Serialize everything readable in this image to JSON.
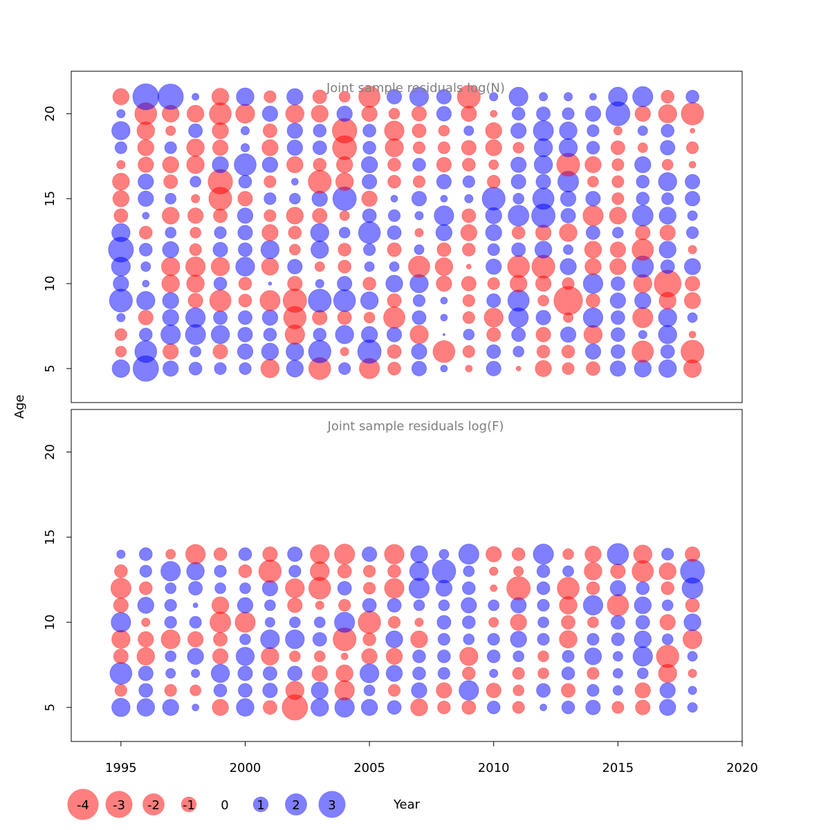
{
  "chart_data": [
    {
      "type": "scatter",
      "subtype": "bubble",
      "title": "Joint sample residuals log(N)",
      "ylabel": "Age",
      "xlabel": "Year",
      "xlim": [
        1993,
        2020
      ],
      "ylim": [
        3,
        22.5
      ],
      "x_ticks": [
        1995,
        2000,
        2005,
        2010,
        2015,
        2020
      ],
      "y_ticks": [
        5,
        10,
        15,
        20
      ],
      "years": [
        1995,
        1996,
        1997,
        1998,
        1999,
        2000,
        2001,
        2002,
        2003,
        2004,
        2005,
        2006,
        2007,
        2008,
        2009,
        2010,
        2011,
        2012,
        2013,
        2014,
        2015,
        2016,
        2017,
        2018
      ],
      "ages": [
        5,
        6,
        7,
        8,
        9,
        10,
        11,
        12,
        13,
        14,
        15,
        16,
        17,
        18,
        19,
        20,
        21
      ],
      "residuals": [
        [
          1.3,
          2.7,
          1.0,
          0.7,
          0.6,
          0.6,
          -1.4,
          1.2,
          -2.0,
          0.6,
          -1.7,
          -0.7,
          0.9,
          0.2,
          -0.2,
          0.9,
          -0.1,
          -1.1,
          -0.6,
          -0.8,
          1.0,
          1.2,
          1.3,
          -1.3
        ],
        [
          -0.5,
          2.0,
          -1.0,
          0.5,
          -0.9,
          1.0,
          1.2,
          1.3,
          2.1,
          -0.3,
          2.3,
          -0.8,
          1.0,
          -2.0,
          -0.6,
          0.8,
          0.5,
          -0.7,
          -0.7,
          1.0,
          0.8,
          -1.9,
          0.8,
          -2.2
        ],
        [
          -0.6,
          0.7,
          1.6,
          1.7,
          1.4,
          0.9,
          0.7,
          -1.6,
          0.7,
          1.4,
          1.1,
          0.9,
          -1.4,
          0.02,
          0.5,
          -0.8,
          0.8,
          -0.9,
          1.0,
          -1.4,
          0.8,
          0.3,
          1.4,
          -0.2
        ],
        [
          0.3,
          -0.9,
          1.1,
          1.6,
          0.8,
          0.8,
          1.0,
          -2.1,
          -0.9,
          -0.8,
          -0.5,
          -1.9,
          0.8,
          0.2,
          -0.6,
          -1.5,
          1.6,
          0.9,
          -0.4,
          1.6,
          0.8,
          -1.7,
          1.4,
          0.4
        ],
        [
          2.2,
          1.4,
          1.1,
          -0.9,
          -1.9,
          -0.7,
          -1.7,
          -2.3,
          2.2,
          2.0,
          1.3,
          -0.8,
          0.6,
          0.2,
          -0.6,
          0.8,
          1.9,
          -0.5,
          -3.4,
          -0.8,
          1.0,
          1.1,
          -1.2,
          -1.1
        ],
        [
          1.0,
          0.2,
          -1.3,
          -1.3,
          0.7,
          -0.7,
          0.05,
          -0.9,
          0.3,
          0.9,
          -0.7,
          1.2,
          1.4,
          -1.0,
          -0.9,
          -0.6,
          -1.2,
          -1.0,
          -0.6,
          1.6,
          0.8,
          -1.4,
          -3.0,
          -0.9
        ],
        [
          1.5,
          0.4,
          -1.4,
          -1.6,
          -1.4,
          1.5,
          -1.2,
          0.9,
          -0.4,
          -0.7,
          0.4,
          0.4,
          -1.9,
          -1.3,
          -0.1,
          1.0,
          -2.0,
          -2.2,
          1.1,
          -1.1,
          -1.1,
          1.9,
          0.8,
          1.1
        ],
        [
          2.6,
          0.7,
          1.1,
          -0.6,
          0.9,
          0.8,
          1.4,
          -0.5,
          1.3,
          -0.7,
          0.6,
          -0.8,
          0.4,
          -0.8,
          -0.7,
          0.6,
          0.8,
          1.2,
          0.4,
          -1.2,
          -1.0,
          -1.9,
          1.2,
          -0.3
        ],
        [
          1.4,
          -0.7,
          0.5,
          -0.5,
          0.6,
          0.9,
          -1.1,
          -0.7,
          1.4,
          0.5,
          2.0,
          0.8,
          -0.3,
          1.1,
          -1.1,
          1.1,
          -0.7,
          -1.0,
          -1.3,
          0.8,
          0.5,
          -0.9,
          -1.0,
          0.6
        ],
        [
          -0.8,
          0.2,
          -1.2,
          -1.0,
          -0.8,
          1.0,
          -0.6,
          -1.2,
          -0.9,
          -0.4,
          0.8,
          0.6,
          0.3,
          1.6,
          -0.8,
          1.1,
          1.8,
          2.3,
          0.9,
          -1.7,
          -1.2,
          1.8,
          1.2,
          0.4
        ],
        [
          -1.1,
          1.0,
          0.5,
          -0.3,
          -2.2,
          -0.9,
          0.6,
          0.5,
          1.0,
          2.3,
          -1.0,
          0.2,
          0.9,
          0.2,
          0.3,
          2.2,
          0.5,
          1.9,
          1.0,
          0.9,
          -0.6,
          0.7,
          0.6,
          0.9
        ],
        [
          -1.2,
          1.0,
          -0.8,
          0.5,
          -2.5,
          0.7,
          -0.6,
          0.2,
          -2.2,
          -1.3,
          0.9,
          -0.7,
          -0.6,
          0.9,
          0.6,
          -0.7,
          0.9,
          0.9,
          1.8,
          -0.5,
          -0.6,
          0.7,
          1.4,
          0.9
        ],
        [
          -0.3,
          -1.0,
          -1.1,
          -1.3,
          1.1,
          2.0,
          1.0,
          -1.1,
          -0.7,
          -1.1,
          1.1,
          -0.7,
          0.7,
          -0.9,
          -0.7,
          -0.4,
          1.0,
          1.4,
          -2.2,
          -1.1,
          -0.6,
          1.1,
          -0.5,
          -0.2
        ],
        [
          0.6,
          -1.1,
          0.6,
          -1.3,
          -1.0,
          0.3,
          -1.1,
          1.0,
          0.8,
          -2.4,
          0.7,
          -1.4,
          -0.6,
          -0.6,
          -0.9,
          -1.1,
          -0.5,
          1.4,
          1.4,
          0.7,
          -0.8,
          -0.4,
          0.9,
          -0.6
        ],
        [
          1.4,
          -1.3,
          -0.4,
          0.8,
          -1.1,
          0.3,
          -0.8,
          1.0,
          0.7,
          -2.5,
          0.7,
          -1.6,
          -0.8,
          -0.5,
          0.4,
          -1.1,
          1.0,
          1.7,
          1.3,
          0.6,
          -0.3,
          0.4,
          0.7,
          -0.1
        ],
        [
          0.3,
          -2.0,
          -1.2,
          -1.2,
          -2.0,
          -1.5,
          1.0,
          -1.4,
          -1.2,
          1.0,
          -1.0,
          -0.5,
          -0.9,
          0.9,
          -1.0,
          -0.2,
          0.7,
          0.8,
          0.6,
          1.0,
          2.4,
          -1.0,
          -1.4,
          -2.1
        ],
        [
          -1.1,
          2.8,
          2.7,
          0.2,
          -1.2,
          1.3,
          -0.6,
          1.1,
          -0.8,
          -0.5,
          -1.9,
          0.9,
          1.5,
          0.9,
          -2.2,
          0.3,
          1.5,
          0.3,
          0.3,
          0.2,
          1.5,
          1.7,
          -0.7,
          0.7
        ]
      ]
    },
    {
      "type": "scatter",
      "subtype": "bubble",
      "title": "Joint sample residuals log(F)",
      "ylabel": "Age",
      "xlabel": "Year",
      "xlim": [
        1993,
        2020
      ],
      "ylim": [
        3,
        22.5
      ],
      "x_ticks": [
        1995,
        2000,
        2005,
        2010,
        2015,
        2020
      ],
      "y_ticks": [
        5,
        10,
        15,
        20
      ],
      "years": [
        1995,
        1996,
        1997,
        1998,
        1999,
        2000,
        2001,
        2002,
        2003,
        2004,
        2005,
        2006,
        2007,
        2008,
        2009,
        2010,
        2011,
        2012,
        2013,
        2014,
        2015,
        2016,
        2017,
        2018
      ],
      "ages": [
        5,
        6,
        7,
        8,
        9,
        10,
        11,
        12,
        13,
        14
      ],
      "residuals": [
        [
          1.4,
          1.3,
          1.1,
          0.2,
          -1.1,
          1.3,
          -0.8,
          -2.7,
          1.3,
          1.6,
          1.1,
          0.8,
          -1.2,
          -0.7,
          -0.8,
          0.7,
          -0.6,
          0.2,
          0.7,
          0.9,
          -0.6,
          -0.9,
          1.1,
          0.4
        ],
        [
          -0.6,
          0.8,
          -0.6,
          -0.5,
          0.7,
          0.8,
          0.9,
          -1.4,
          1.2,
          -1.6,
          0.5,
          -0.6,
          1.0,
          -1.0,
          1.6,
          -0.9,
          -0.5,
          0.8,
          -0.8,
          0.6,
          0.4,
          -1.0,
          1.0,
          0.3
        ],
        [
          2.0,
          0.9,
          0.4,
          0.3,
          1.4,
          0.9,
          0.8,
          0.9,
          -1.0,
          -1.2,
          1.5,
          1.1,
          0.7,
          0.6,
          -0.7,
          0.3,
          -0.6,
          -0.5,
          0.7,
          -0.6,
          0.4,
          0.5,
          -1.4,
          -0.3
        ],
        [
          -0.9,
          -1.3,
          0.5,
          1.1,
          -1.0,
          1.4,
          -1.3,
          -0.5,
          -0.5,
          -0.2,
          -1.0,
          -1.1,
          0.7,
          0.7,
          -1.4,
          0.7,
          0.5,
          -0.5,
          0.6,
          1.2,
          0.4,
          1.6,
          -2.1,
          0.4
        ],
        [
          -1.4,
          -1.0,
          -1.5,
          -1.0,
          -0.8,
          0.5,
          1.5,
          1.5,
          0.8,
          -2.2,
          -0.7,
          1.2,
          -1.2,
          0.6,
          0.5,
          0.6,
          1.1,
          0.6,
          -1.3,
          0.6,
          0.7,
          1.2,
          0.5,
          -1.5
        ],
        [
          1.6,
          -0.3,
          0.6,
          0.6,
          -1.8,
          -1.7,
          0.4,
          0.5,
          0.5,
          1.7,
          -2.1,
          -0.6,
          -0.3,
          0.8,
          0.7,
          -0.4,
          -1.1,
          0.5,
          -0.8,
          -0.5,
          0.8,
          0.8,
          -1.0,
          1.2
        ],
        [
          -0.9,
          1.1,
          0.6,
          0.1,
          -1.2,
          1.0,
          0.5,
          -0.9,
          -0.3,
          -0.6,
          0.8,
          0.8,
          0.5,
          0.5,
          1.0,
          0.5,
          1.0,
          0.6,
          -1.3,
          1.6,
          -1.9,
          1.2,
          0.5,
          -0.8
        ],
        [
          -1.7,
          -0.7,
          0.5,
          0.8,
          0.5,
          0.5,
          1.0,
          -1.5,
          -2.0,
          0.8,
          -0.6,
          -1.6,
          1.7,
          1.1,
          0.7,
          -0.2,
          -2.3,
          0.7,
          -2.0,
          -0.7,
          1.0,
          0.7,
          -0.7,
          1.8
        ],
        [
          -0.7,
          0.6,
          1.6,
          1.3,
          0.6,
          -0.7,
          -2.1,
          0.6,
          -1.5,
          -0.8,
          -0.6,
          -0.7,
          1.5,
          2.3,
          0.5,
          -0.3,
          -0.4,
          0.7,
          0.5,
          -1.3,
          -0.9,
          -1.9,
          -1.2,
          2.4
        ],
        [
          0.3,
          0.7,
          -0.4,
          -1.6,
          -0.7,
          0.7,
          -0.9,
          0.9,
          -1.5,
          -1.7,
          0.9,
          -1.6,
          1.2,
          0.4,
          1.7,
          -1.0,
          -0.7,
          1.7,
          -0.5,
          -1.1,
          1.9,
          -1.4,
          0.6,
          -0.9
        ]
      ]
    }
  ],
  "legend": {
    "items": [
      {
        "label": "-4",
        "value": -4
      },
      {
        "label": "-3",
        "value": -3
      },
      {
        "label": "-2",
        "value": -2
      },
      {
        "label": "-1",
        "value": -1
      },
      {
        "label": "0",
        "value": 0
      },
      {
        "label": "1",
        "value": 1
      },
      {
        "label": "2",
        "value": 2
      },
      {
        "label": "3",
        "value": 3
      }
    ],
    "placement": "bottom-left"
  },
  "colors": {
    "negative": "#ff0000",
    "positive": "#0000ff",
    "bubble_opacity": 0.5,
    "title": "#808080",
    "frame": "#000000"
  },
  "axes": {
    "x_title": "Year",
    "y_title": "Age"
  }
}
